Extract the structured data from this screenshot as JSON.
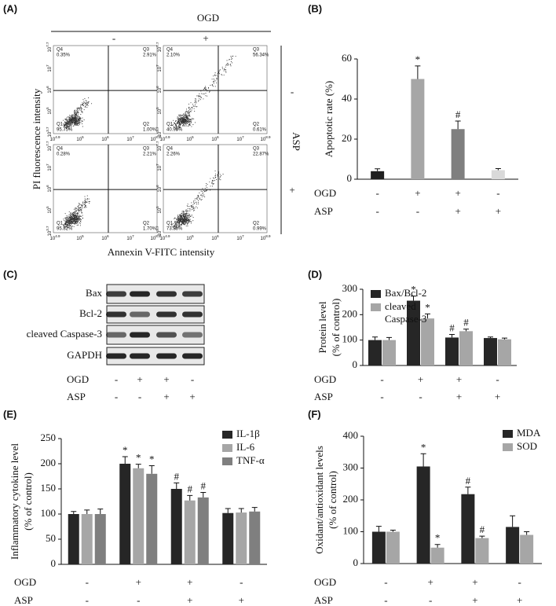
{
  "flow_panel": {
    "label": "(A)",
    "treatment_top": "OGD",
    "top_signs": [
      "-",
      "+"
    ],
    "treatment_side": "ASP",
    "side_signs": [
      "-",
      "+"
    ],
    "y_label": "PI fluorescence intensity",
    "x_label": "Annexin V-FITC intensity",
    "tick_base": "10",
    "x_tick_exponents": [
      "4.9",
      "5",
      "6",
      "7",
      "8.9"
    ],
    "y_tick_exponents": [
      "3.7",
      "5",
      "6",
      "7",
      "7.7"
    ],
    "plots": [
      {
        "quadrants": [
          {
            "name": "Q4",
            "percent": "0.35%"
          },
          {
            "name": "Q3",
            "percent": "2.91%"
          },
          {
            "name": "Q1",
            "percent": "95.75%"
          },
          {
            "name": "Q2",
            "percent": "1.00%"
          }
        ]
      },
      {
        "quadrants": [
          {
            "name": "Q4",
            "percent": "2.10%"
          },
          {
            "name": "Q3",
            "percent": "56.34%"
          },
          {
            "name": "Q1",
            "percent": "40.95%"
          },
          {
            "name": "Q2",
            "percent": "0.61%"
          }
        ]
      },
      {
        "quadrants": [
          {
            "name": "Q4",
            "percent": "0.28%"
          },
          {
            "name": "Q3",
            "percent": "2.21%"
          },
          {
            "name": "Q1",
            "percent": "95.82%"
          },
          {
            "name": "Q2",
            "percent": "1.70%"
          }
        ]
      },
      {
        "quadrants": [
          {
            "name": "Q4",
            "percent": "2.26%"
          },
          {
            "name": "Q3",
            "percent": "22.87%"
          },
          {
            "name": "Q1",
            "percent": "73.88%"
          },
          {
            "name": "Q2",
            "percent": "0.99%"
          }
        ]
      }
    ]
  },
  "blot_panel": {
    "label": "(C)",
    "proteins": [
      "Bax",
      "Bcl-2",
      "cleaved Caspase-3",
      "GAPDH"
    ],
    "conditions": [
      {
        "name": "OGD",
        "signs": [
          "-",
          "+",
          "+",
          "-"
        ]
      },
      {
        "name": "ASP",
        "signs": [
          "-",
          "-",
          "+",
          "+"
        ]
      }
    ]
  },
  "chart_data": [
    {
      "type": "bar",
      "panel": "(B)",
      "y_label": [
        "Apoptotic rate (%)"
      ],
      "values": [
        4,
        50,
        25,
        4.5
      ],
      "errors": [
        1.2,
        6.5,
        4,
        0.8
      ],
      "colors": [
        "#1f1f1f",
        "#a6a6a6",
        "#7f7f7f",
        "#d9d9d9"
      ],
      "annotations": [
        null,
        "*",
        "#",
        null
      ],
      "ylim": [
        0,
        60
      ],
      "yticks": [
        0,
        20,
        40,
        60
      ],
      "conditions": [
        {
          "name": "OGD",
          "signs": [
            "-",
            "+",
            "+",
            "-"
          ]
        },
        {
          "name": "ASP",
          "signs": [
            "-",
            "-",
            "+",
            "+"
          ]
        }
      ]
    },
    {
      "type": "bar",
      "panel": "(D)",
      "y_label": [
        "Protein level",
        "(% of control)"
      ],
      "series": [
        {
          "name": "Bax/Bcl-2",
          "color": "#262626",
          "values": [
            100,
            255,
            110,
            108
          ],
          "errors": [
            12,
            18,
            12,
            4
          ],
          "annotations": [
            null,
            "*",
            "#",
            null
          ]
        },
        {
          "name": "cleaved Caspase-3",
          "color": "#a6a6a6",
          "values": [
            100,
            185,
            135,
            103
          ],
          "errors": [
            10,
            18,
            8,
            5
          ],
          "annotations": [
            null,
            "*",
            "#",
            null
          ]
        }
      ],
      "ylim": [
        0,
        300
      ],
      "yticks": [
        0,
        100,
        200,
        300
      ],
      "conditions": [
        {
          "name": "OGD",
          "signs": [
            "-",
            "+",
            "+",
            "-"
          ]
        },
        {
          "name": "ASP",
          "signs": [
            "-",
            "-",
            "+",
            "+"
          ]
        }
      ]
    },
    {
      "type": "bar",
      "panel": "(E)",
      "y_label": [
        "Inflammatory cytokine level",
        "(% of control)"
      ],
      "series": [
        {
          "name": "IL-1β",
          "color": "#262626",
          "values": [
            100,
            200,
            150,
            102
          ],
          "errors": [
            5,
            14,
            12,
            9
          ],
          "annotations": [
            null,
            "*",
            "#",
            null
          ]
        },
        {
          "name": "IL-6",
          "color": "#a6a6a6",
          "values": [
            100,
            191,
            127,
            103
          ],
          "errors": [
            8,
            8,
            10,
            8
          ],
          "annotations": [
            null,
            "*",
            "#",
            null
          ]
        },
        {
          "name": "TNF-α",
          "color": "#7f7f7f",
          "values": [
            100,
            180,
            133,
            105
          ],
          "errors": [
            10,
            16,
            10,
            8
          ],
          "annotations": [
            null,
            "*",
            "#",
            null
          ]
        }
      ],
      "ylim": [
        0,
        250
      ],
      "yticks": [
        0,
        50,
        100,
        150,
        200,
        250
      ],
      "conditions": [
        {
          "name": "OGD",
          "signs": [
            "-",
            "+",
            "+",
            "-"
          ]
        },
        {
          "name": "ASP",
          "signs": [
            "-",
            "-",
            "+",
            "+"
          ]
        }
      ]
    },
    {
      "type": "bar",
      "panel": "(F)",
      "y_label": [
        "Oxidant/antioxidant levels",
        "(% of control)"
      ],
      "series": [
        {
          "name": "MDA",
          "color": "#262626",
          "values": [
            100,
            305,
            218,
            115
          ],
          "errors": [
            17,
            40,
            22,
            35
          ],
          "annotations": [
            null,
            "*",
            "#",
            null
          ]
        },
        {
          "name": "SOD",
          "color": "#a6a6a6",
          "values": [
            100,
            50,
            80,
            90
          ],
          "errors": [
            5,
            10,
            6,
            10
          ],
          "annotations": [
            null,
            "*",
            "#",
            null
          ]
        }
      ],
      "ylim": [
        0,
        400
      ],
      "yticks": [
        0,
        100,
        200,
        300,
        400
      ],
      "conditions": [
        {
          "name": "OGD",
          "signs": [
            "-",
            "+",
            "+",
            "-"
          ]
        },
        {
          "name": "ASP",
          "signs": [
            "-",
            "-",
            "+",
            "+"
          ]
        }
      ]
    }
  ]
}
